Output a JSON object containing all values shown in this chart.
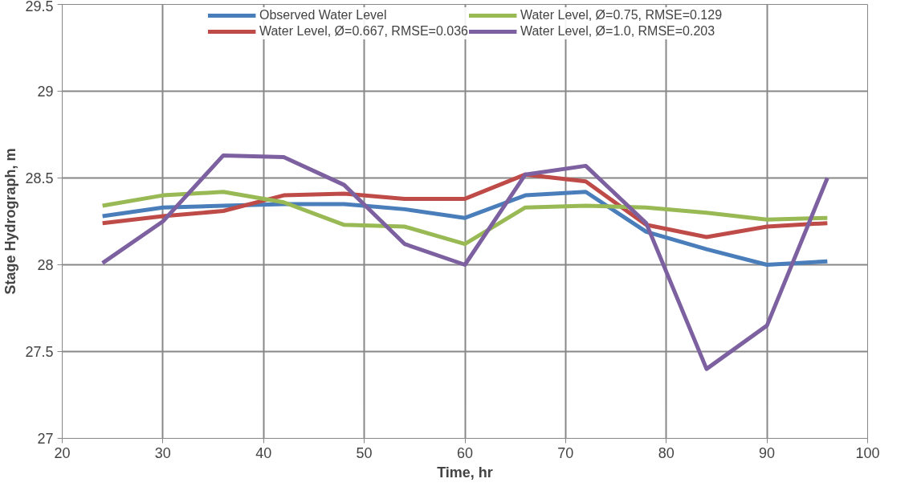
{
  "chart_data": {
    "type": "line",
    "xlabel": "Time, hr",
    "ylabel": "Stage Hydrograph, m",
    "x": [
      24,
      30,
      36,
      42,
      48,
      54,
      60,
      66,
      72,
      78,
      84,
      90,
      96
    ],
    "series": [
      {
        "name": "Observed Water Level",
        "color": "#4a7ebb",
        "values": [
          28.28,
          28.33,
          28.34,
          28.35,
          28.35,
          28.32,
          28.27,
          28.4,
          28.42,
          28.19,
          28.09,
          28.0,
          28.02
        ]
      },
      {
        "name": "Water Level, Ø=0.667, RMSE=0.036",
        "color": "#be4b48",
        "values": [
          28.24,
          28.28,
          28.31,
          28.4,
          28.41,
          28.38,
          28.38,
          28.52,
          28.48,
          28.23,
          28.16,
          28.22,
          28.24
        ]
      },
      {
        "name": "Water Level, Ø=0.75, RMSE=0.129",
        "color": "#98b954",
        "values": [
          28.34,
          28.4,
          28.42,
          28.36,
          28.23,
          28.22,
          28.12,
          28.33,
          28.34,
          28.33,
          28.3,
          28.26,
          28.27
        ]
      },
      {
        "name": "Water Level, Ø=1.0, RMSE=0.203",
        "color": "#7d60a0",
        "values": [
          28.01,
          28.25,
          28.63,
          28.62,
          28.46,
          28.12,
          28.0,
          28.52,
          28.57,
          28.24,
          27.4,
          27.65,
          28.5
        ]
      }
    ],
    "xlim": [
      20,
      100
    ],
    "ylim": [
      27,
      29.5
    ],
    "xticks": [
      20,
      30,
      40,
      50,
      60,
      70,
      80,
      90,
      100
    ],
    "yticks": [
      27,
      {
        "value": 27.5,
        "label": "27.5"
      },
      28,
      {
        "value": 28.5,
        "label": "28.5"
      },
      29,
      {
        "value": 29.5,
        "label": "29.5"
      }
    ],
    "grid": true,
    "legend": "top",
    "marker": "none",
    "line_style": "solid"
  }
}
